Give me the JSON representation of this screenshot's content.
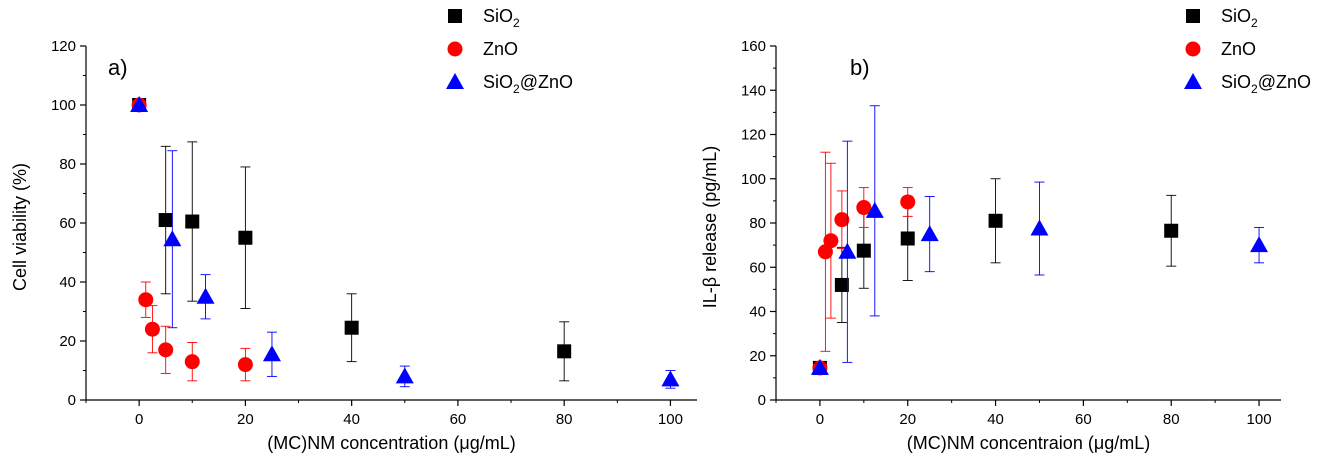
{
  "chart_data": [
    {
      "type": "scatter",
      "panel_label": "a)",
      "title": "",
      "xlabel": "(MC)NM concentration (μg/mL)",
      "ylabel": "Cell viability (%)",
      "xlim": [
        -10,
        105
      ],
      "ylim": [
        0,
        120
      ],
      "xticks": [
        0,
        20,
        40,
        60,
        80,
        100
      ],
      "yticks": [
        0,
        20,
        40,
        60,
        80,
        100,
        120
      ],
      "grid": false,
      "legend_position": "top-right",
      "series": [
        {
          "name": "SiO2",
          "name_base": "SiO",
          "name_sub": "2",
          "name_rest": "",
          "marker": "square",
          "color": "#000000",
          "points": [
            {
              "x": 0,
              "y": 100,
              "err": 0
            },
            {
              "x": 5,
              "y": 61,
              "err": 25
            },
            {
              "x": 10,
              "y": 60.5,
              "err": 27
            },
            {
              "x": 20,
              "y": 55,
              "err": 24
            },
            {
              "x": 40,
              "y": 24.5,
              "err": 11.5
            },
            {
              "x": 80,
              "y": 16.5,
              "err": 10
            }
          ]
        },
        {
          "name": "ZnO",
          "name_base": "ZnO",
          "name_sub": "",
          "name_rest": "",
          "marker": "circle",
          "color": "#ff0000",
          "points": [
            {
              "x": 0,
              "y": 100,
              "err": 0
            },
            {
              "x": 1.25,
              "y": 34,
              "err": 6
            },
            {
              "x": 2.5,
              "y": 24,
              "err": 8
            },
            {
              "x": 5,
              "y": 17,
              "err": 8
            },
            {
              "x": 10,
              "y": 13,
              "err": 6.5
            },
            {
              "x": 20,
              "y": 12,
              "err": 5.5
            }
          ]
        },
        {
          "name": "SiO2@ZnO",
          "name_base": "SiO",
          "name_sub": "2",
          "name_rest": "@ZnO",
          "marker": "triangle",
          "color": "#0000ff",
          "points": [
            {
              "x": 0,
              "y": 100,
              "err": 0
            },
            {
              "x": 6.25,
              "y": 54.5,
              "err": 30
            },
            {
              "x": 12.5,
              "y": 35,
              "err": 7.5
            },
            {
              "x": 25,
              "y": 15.5,
              "err": 7.5
            },
            {
              "x": 50,
              "y": 8,
              "err": 3.5
            },
            {
              "x": 100,
              "y": 7,
              "err": 3
            }
          ]
        }
      ]
    },
    {
      "type": "scatter",
      "panel_label": "b)",
      "title": "",
      "xlabel": "(MC)NM concentraion (μg/mL)",
      "ylabel": "IL-β release (pg/mL)",
      "xlim": [
        -10,
        105
      ],
      "ylim": [
        0,
        160
      ],
      "xticks": [
        0,
        20,
        40,
        60,
        80,
        100
      ],
      "yticks": [
        0,
        20,
        40,
        60,
        80,
        100,
        120,
        140,
        160
      ],
      "grid": false,
      "legend_position": "top-right",
      "series": [
        {
          "name": "SiO2",
          "name_base": "SiO",
          "name_sub": "2",
          "name_rest": "",
          "marker": "square",
          "color": "#000000",
          "points": [
            {
              "x": 0,
              "y": 14.5,
              "err": 2
            },
            {
              "x": 5,
              "y": 52,
              "err": 17
            },
            {
              "x": 10,
              "y": 67.5,
              "err": 17
            },
            {
              "x": 20,
              "y": 73,
              "err": 19
            },
            {
              "x": 40,
              "y": 81,
              "err": 19
            },
            {
              "x": 80,
              "y": 76.5,
              "err": 16
            }
          ]
        },
        {
          "name": "ZnO",
          "name_base": "ZnO",
          "name_sub": "",
          "name_rest": "",
          "marker": "circle",
          "color": "#ff0000",
          "points": [
            {
              "x": 0,
              "y": 14.5,
              "err": 2
            },
            {
              "x": 1.25,
              "y": 67,
              "err": 45
            },
            {
              "x": 2.5,
              "y": 72,
              "err": 35
            },
            {
              "x": 5,
              "y": 81.5,
              "err": 13
            },
            {
              "x": 10,
              "y": 87,
              "err": 9
            },
            {
              "x": 20,
              "y": 89.5,
              "err": 6.5
            }
          ]
        },
        {
          "name": "SiO2@ZnO",
          "name_base": "SiO",
          "name_sub": "2",
          "name_rest": "@ZnO",
          "marker": "triangle",
          "color": "#0000ff",
          "points": [
            {
              "x": 0,
              "y": 14.5,
              "err": 2
            },
            {
              "x": 6.25,
              "y": 67,
              "err": 50
            },
            {
              "x": 12.5,
              "y": 85.5,
              "err": 47.5
            },
            {
              "x": 25,
              "y": 75,
              "err": 17
            },
            {
              "x": 50,
              "y": 77.5,
              "err": 21
            },
            {
              "x": 100,
              "y": 70,
              "err": 8
            }
          ]
        }
      ]
    }
  ]
}
